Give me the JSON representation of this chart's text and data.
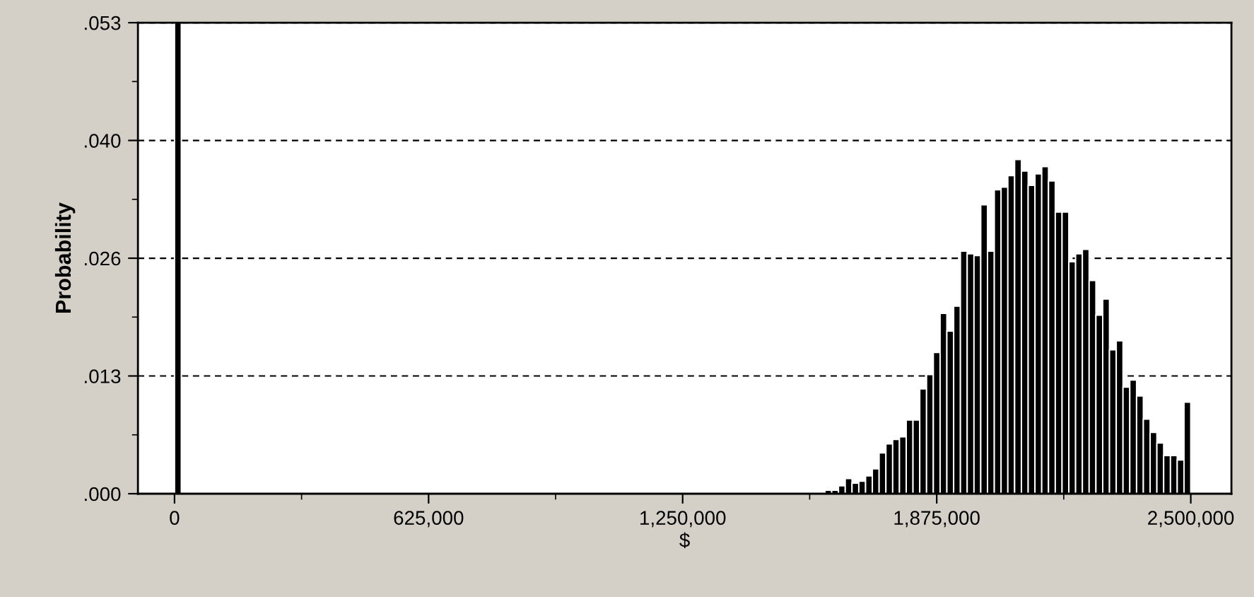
{
  "chart_data": {
    "type": "histogram",
    "xlabel": "$",
    "ylabel": "Probability",
    "color": "#000000",
    "bins": [
      0,
      16667,
      1516667,
      1533333,
      1566667,
      1583333,
      1600000,
      1616667,
      1633333,
      1650000,
      1666667,
      1683333,
      1700000,
      1716667,
      1733333,
      1750000,
      1766667,
      1783333,
      1800000,
      1816667,
      1833333,
      1850000,
      1866667,
      1883333,
      1900000,
      1916667,
      1933333,
      1950000,
      1966667,
      1983333,
      2000000,
      2016667,
      2033333,
      2050000,
      2066667,
      2083333,
      2100000,
      2116667,
      2133333,
      2150000,
      2166667,
      2183333,
      2200000,
      2216667,
      2233333,
      2250000,
      2266667,
      2283333,
      2300000,
      2316667,
      2333333,
      2350000,
      2366667,
      2383333,
      2400000,
      2416667,
      2433333,
      2450000,
      2466667,
      2483333,
      2500000
    ],
    "values": [
      0.053,
      0,
      0.0001,
      0,
      0.0001,
      0,
      0.0004,
      0.0004,
      0.0009,
      0.0017,
      0.0012,
      0.0014,
      0.002,
      0.0028,
      0.0046,
      0.0056,
      0.0061,
      0.0064,
      0.0083,
      0.0083,
      0.0118,
      0.0134,
      0.0159,
      0.0203,
      0.0183,
      0.0211,
      0.0273,
      0.027,
      0.0268,
      0.0325,
      0.0273,
      0.0342,
      0.0345,
      0.0358,
      0.0376,
      0.0363,
      0.0347,
      0.036,
      0.0368,
      0.0352,
      0.0317,
      0.0317,
      0.0261,
      0.027,
      0.0275,
      0.024,
      0.0201,
      0.0219,
      0.0162,
      0.0172,
      0.012,
      0.0128,
      0.011,
      0.0084,
      0.0069,
      0.0057,
      0.0043,
      0.0043,
      0.0038,
      0.0103
    ],
    "xlim": [
      -90000,
      2600000
    ],
    "ylim": [
      0,
      0.053
    ],
    "xticks": [
      0,
      {
        "value": 625000,
        "label": "625,000"
      },
      {
        "value": 1250000,
        "label": "1,250,000"
      },
      {
        "value": 1875000,
        "label": "1,875,000"
      },
      {
        "value": 2500000,
        "label": "2,500,000"
      }
    ],
    "yticks": [
      {
        "value": 0,
        "label": ".000"
      },
      {
        "value": 0.01325,
        "label": ".013"
      },
      {
        "value": 0.0265,
        "label": ".026"
      },
      {
        "value": 0.03975,
        "label": ".040"
      },
      {
        "value": 0.053,
        "label": ".053"
      }
    ],
    "grid": "y",
    "line_style": "dashed"
  }
}
